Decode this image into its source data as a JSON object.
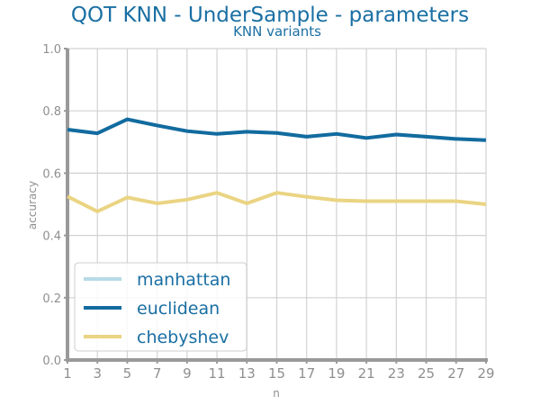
{
  "chart_data": {
    "type": "line",
    "title": "QOT KNN - UnderSample - parameters",
    "subtitle": "KNN variants",
    "xlabel": "n",
    "ylabel": "accuracy",
    "x": [
      1,
      3,
      5,
      7,
      9,
      11,
      13,
      15,
      17,
      19,
      21,
      23,
      25,
      27,
      29
    ],
    "xlim": [
      1,
      29
    ],
    "ylim": [
      0,
      1
    ],
    "yticks": [
      "0.0",
      "0.2",
      "0.4",
      "0.6",
      "0.8",
      "1.0"
    ],
    "xticks": [
      "1",
      "3",
      "5",
      "7",
      "9",
      "11",
      "13",
      "15",
      "17",
      "19",
      "21",
      "23",
      "25",
      "27",
      "29"
    ],
    "grid": true,
    "legend_position": "bottom-left",
    "series": [
      {
        "name": "manhattan",
        "color": "#b7dbe6",
        "values": [
          0.74,
          0.728,
          0.773,
          0.753,
          0.735,
          0.726,
          0.733,
          0.729,
          0.717,
          0.726,
          0.713,
          0.724,
          0.717,
          0.71,
          0.706
        ]
      },
      {
        "name": "euclidean",
        "color": "#126b9f",
        "values": [
          0.74,
          0.728,
          0.773,
          0.753,
          0.735,
          0.726,
          0.733,
          0.729,
          0.717,
          0.726,
          0.713,
          0.724,
          0.717,
          0.71,
          0.706
        ]
      },
      {
        "name": "chebyshev",
        "color": "#ead483",
        "values": [
          0.525,
          0.477,
          0.522,
          0.503,
          0.515,
          0.537,
          0.503,
          0.537,
          0.524,
          0.513,
          0.51,
          0.51,
          0.51,
          0.51,
          0.5
        ]
      }
    ]
  }
}
